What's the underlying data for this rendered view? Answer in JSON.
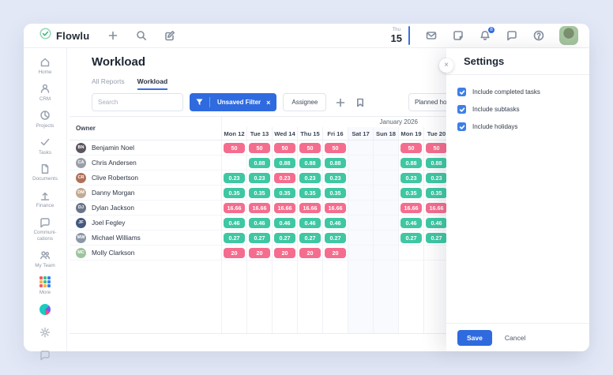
{
  "colors": {
    "accent_blue": "#2F6BDF",
    "badge_red": "#F56D8E",
    "badge_green": "#3EC7A2",
    "brand_green": "#34B778",
    "background": "#E2E8F6"
  },
  "topbar": {
    "brand": "Flowlu",
    "date_weekday": "Thu",
    "date_day": "15",
    "notification_count": "8",
    "left_icons": [
      "plus-icon",
      "search-icon",
      "clipboard-edit-icon"
    ],
    "right_icons": [
      "envelope-icon",
      "note-icon",
      "bell-icon",
      "chat-icon",
      "help-icon"
    ]
  },
  "sidebar": {
    "items": [
      {
        "id": "home",
        "label": "Home",
        "icon": "home-icon"
      },
      {
        "id": "crm",
        "label": "CRM",
        "icon": "crm-icon"
      },
      {
        "id": "projects",
        "label": "Projects",
        "icon": "projects-icon"
      },
      {
        "id": "tasks",
        "label": "Tasks",
        "icon": "tasks-icon"
      },
      {
        "id": "documents",
        "label": "Documents",
        "icon": "documents-icon"
      },
      {
        "id": "finance",
        "label": "Finance",
        "icon": "finance-icon"
      },
      {
        "id": "communications",
        "label": "Communi-cations",
        "icon": "communications-icon"
      },
      {
        "id": "my-team",
        "label": "My Team",
        "icon": "my-team-icon"
      },
      {
        "id": "more",
        "label": "More",
        "icon": "more-grid-icon"
      }
    ],
    "bottom_items": [
      {
        "id": "flowlu-app",
        "icon": "flowlu-colored-icon"
      },
      {
        "id": "settings",
        "icon": "gear-icon"
      },
      {
        "id": "support",
        "icon": "chat-bubble-icon"
      }
    ]
  },
  "page": {
    "title": "Workload",
    "tabs": [
      {
        "label": "All Reports",
        "active": false
      },
      {
        "label": "Workload",
        "active": true
      }
    ]
  },
  "toolbar": {
    "search_placeholder": "Search",
    "filter_button": "Unsaved Filter",
    "filter_close": "×",
    "assignee_button": "Assignee",
    "planned_dropdown": "Planned hour"
  },
  "workload_table": {
    "owner_header": "Owner",
    "month_label": "January 2026",
    "days": [
      "Mon 12",
      "Tue 13",
      "Wed 14",
      "Thu 15",
      "Fri 16",
      "Sat 17",
      "Sun 18",
      "Mon 19",
      "Tue 20"
    ],
    "weekend_indexes": [
      5,
      6
    ],
    "rows": [
      {
        "name": "Benjamin Noel",
        "initials": "BN",
        "avatar_color": "#5b5560",
        "cells": [
          {
            "v": "50",
            "s": "over"
          },
          {
            "v": "50",
            "s": "over"
          },
          {
            "v": "50",
            "s": "over"
          },
          {
            "v": "50",
            "s": "over"
          },
          {
            "v": "50",
            "s": "over"
          },
          null,
          null,
          {
            "v": "50",
            "s": "over"
          },
          {
            "v": "50",
            "s": "over"
          }
        ]
      },
      {
        "name": "Chris Andersen",
        "initials": "CA",
        "avatar_color": "#9aa0a8",
        "cells": [
          null,
          {
            "v": "0.88",
            "s": "ok"
          },
          {
            "v": "0.88",
            "s": "ok"
          },
          {
            "v": "0.88",
            "s": "ok"
          },
          {
            "v": "0.88",
            "s": "ok"
          },
          null,
          null,
          {
            "v": "0.88",
            "s": "ok"
          },
          {
            "v": "0.88",
            "s": "ok"
          }
        ]
      },
      {
        "name": "Clive Robertson",
        "initials": "CR",
        "avatar_color": "#b0715a",
        "cells": [
          {
            "v": "0.23",
            "s": "ok"
          },
          {
            "v": "0.23",
            "s": "ok"
          },
          {
            "v": "0.23",
            "s": "over"
          },
          {
            "v": "0.23",
            "s": "ok"
          },
          {
            "v": "0.23",
            "s": "ok"
          },
          null,
          null,
          {
            "v": "0.23",
            "s": "ok"
          },
          {
            "v": "0.23",
            "s": "ok"
          }
        ]
      },
      {
        "name": "Danny Morgan",
        "initials": "DM",
        "avatar_color": "#c4a995",
        "cells": [
          {
            "v": "0.35",
            "s": "ok"
          },
          {
            "v": "0.35",
            "s": "ok"
          },
          {
            "v": "0.35",
            "s": "ok"
          },
          {
            "v": "0.35",
            "s": "ok"
          },
          {
            "v": "0.35",
            "s": "ok"
          },
          null,
          null,
          {
            "v": "0.35",
            "s": "ok"
          },
          {
            "v": "0.35",
            "s": "ok"
          }
        ]
      },
      {
        "name": "Dylan Jackson",
        "initials": "DJ",
        "avatar_color": "#6b7688",
        "cells": [
          {
            "v": "16.66",
            "s": "over"
          },
          {
            "v": "16.66",
            "s": "over"
          },
          {
            "v": "16.66",
            "s": "over"
          },
          {
            "v": "16.66",
            "s": "over"
          },
          {
            "v": "16.66",
            "s": "over"
          },
          null,
          null,
          {
            "v": "16.66",
            "s": "over"
          },
          {
            "v": "16.66",
            "s": "over"
          }
        ]
      },
      {
        "name": "Joel Fegley",
        "initials": "JF",
        "avatar_color": "#46597e",
        "cells": [
          {
            "v": "0.46",
            "s": "ok"
          },
          {
            "v": "0.46",
            "s": "ok"
          },
          {
            "v": "0.46",
            "s": "ok"
          },
          {
            "v": "0.46",
            "s": "ok"
          },
          {
            "v": "0.46",
            "s": "ok"
          },
          null,
          null,
          {
            "v": "0.46",
            "s": "ok"
          },
          {
            "v": "0.46",
            "s": "ok"
          }
        ]
      },
      {
        "name": "Michael Williams",
        "initials": "MW",
        "avatar_color": "#8c97a8",
        "cells": [
          {
            "v": "0.27",
            "s": "ok"
          },
          {
            "v": "0.27",
            "s": "ok"
          },
          {
            "v": "0.27",
            "s": "ok"
          },
          {
            "v": "0.27",
            "s": "ok"
          },
          {
            "v": "0.27",
            "s": "ok"
          },
          null,
          null,
          {
            "v": "0.27",
            "s": "ok"
          },
          {
            "v": "0.27",
            "s": "ok"
          }
        ]
      },
      {
        "name": "Molly Clarkson",
        "initials": "MC",
        "avatar_color": "#9ec49f",
        "cells": [
          {
            "v": "20",
            "s": "over"
          },
          {
            "v": "20",
            "s": "over"
          },
          {
            "v": "20",
            "s": "over"
          },
          {
            "v": "20",
            "s": "over"
          },
          {
            "v": "20",
            "s": "over"
          },
          null,
          null,
          null,
          null
        ]
      }
    ]
  },
  "settings_panel": {
    "title": "Settings",
    "close_icon": "×",
    "options": [
      {
        "label": "Include completed tasks",
        "checked": true
      },
      {
        "label": "Include subtasks",
        "checked": true
      },
      {
        "label": "Include holidays",
        "checked": true
      }
    ],
    "save_button": "Save",
    "cancel_button": "Cancel"
  }
}
